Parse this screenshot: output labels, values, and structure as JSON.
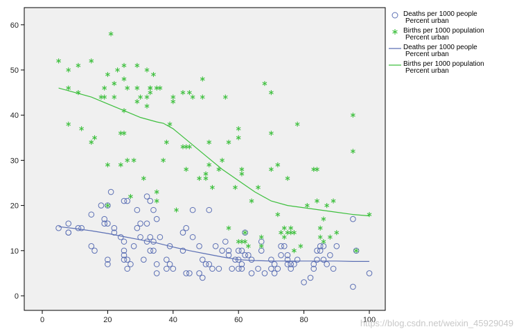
{
  "chart_data": {
    "type": "scatter",
    "xlim": [
      0,
      100
    ],
    "ylim": [
      0,
      60
    ],
    "x_ticks": [
      "0",
      "20",
      "40",
      "60",
      "80",
      "100"
    ],
    "y_ticks": [
      "0",
      "10",
      "20",
      "30",
      "40",
      "50",
      "60"
    ],
    "grid": false,
    "legend_position": "right",
    "colors": {
      "deaths": "#5b6fb4",
      "births": "#3cbf3c",
      "plot_bg": "#f0f0f0"
    },
    "legend": [
      {
        "line1": "Deaths per 1000 people",
        "line2": "Percent urban",
        "marker": "circle"
      },
      {
        "line1": "Births per 1000 population",
        "line2": "Percent urban",
        "marker": "star"
      },
      {
        "line1": "Deaths per 1000 people",
        "line2": "Percent urban",
        "marker": "line-deaths"
      },
      {
        "line1": "Births per 1000 population",
        "line2": "Percent urban",
        "marker": "line-births"
      }
    ],
    "series": [
      {
        "name": "Deaths per 1000 people",
        "marker": "circle",
        "points": [
          [
            5,
            15
          ],
          [
            8,
            14
          ],
          [
            8,
            16
          ],
          [
            8,
            14
          ],
          [
            11,
            15
          ],
          [
            12,
            15
          ],
          [
            15,
            11
          ],
          [
            15,
            18
          ],
          [
            16,
            10
          ],
          [
            18,
            20
          ],
          [
            19,
            16
          ],
          [
            19,
            17
          ],
          [
            20,
            8
          ],
          [
            20,
            7
          ],
          [
            20,
            20
          ],
          [
            20,
            16
          ],
          [
            21,
            23
          ],
          [
            22,
            15
          ],
          [
            22,
            14
          ],
          [
            24,
            13
          ],
          [
            25,
            10
          ],
          [
            25,
            8
          ],
          [
            25,
            12
          ],
          [
            25,
            9
          ],
          [
            25,
            21
          ],
          [
            26,
            21
          ],
          [
            26,
            6
          ],
          [
            26,
            8
          ],
          [
            27,
            7
          ],
          [
            28,
            11
          ],
          [
            29,
            15
          ],
          [
            29,
            19
          ],
          [
            30,
            13
          ],
          [
            30,
            16
          ],
          [
            31,
            8
          ],
          [
            32,
            22
          ],
          [
            32,
            16
          ],
          [
            32,
            12
          ],
          [
            33,
            10
          ],
          [
            33,
            21
          ],
          [
            33,
            13
          ],
          [
            34,
            19
          ],
          [
            34,
            10
          ],
          [
            34,
            12
          ],
          [
            35,
            17
          ],
          [
            35,
            5
          ],
          [
            35,
            7
          ],
          [
            36,
            13
          ],
          [
            38,
            8
          ],
          [
            38,
            6
          ],
          [
            39,
            11
          ],
          [
            39,
            7
          ],
          [
            40,
            6
          ],
          [
            43,
            14
          ],
          [
            43,
            10
          ],
          [
            44,
            15
          ],
          [
            44,
            5
          ],
          [
            45,
            5
          ],
          [
            46,
            13
          ],
          [
            46,
            19
          ],
          [
            48,
            5
          ],
          [
            48,
            11
          ],
          [
            49,
            4
          ],
          [
            49,
            8
          ],
          [
            50,
            7
          ],
          [
            51,
            19
          ],
          [
            51,
            7
          ],
          [
            52,
            6
          ],
          [
            53,
            11
          ],
          [
            54,
            6
          ],
          [
            55,
            10
          ],
          [
            56,
            12
          ],
          [
            57,
            9
          ],
          [
            57,
            10
          ],
          [
            58,
            6
          ],
          [
            59,
            8
          ],
          [
            60,
            10
          ],
          [
            60,
            8
          ],
          [
            60,
            6
          ],
          [
            61,
            10
          ],
          [
            61,
            7
          ],
          [
            61,
            6
          ],
          [
            62,
            14
          ],
          [
            62,
            9
          ],
          [
            63,
            9
          ],
          [
            64,
            8
          ],
          [
            64,
            5
          ],
          [
            66,
            6
          ],
          [
            67,
            10
          ],
          [
            67,
            12
          ],
          [
            68,
            5
          ],
          [
            70,
            8
          ],
          [
            70,
            6
          ],
          [
            71,
            7
          ],
          [
            71,
            5
          ],
          [
            72,
            6
          ],
          [
            73,
            11
          ],
          [
            73,
            9
          ],
          [
            74,
            11
          ],
          [
            75,
            9
          ],
          [
            75,
            7
          ],
          [
            75,
            8
          ],
          [
            76,
            7
          ],
          [
            76,
            6
          ],
          [
            77,
            7
          ],
          [
            78,
            8
          ],
          [
            80,
            3
          ],
          [
            82,
            4
          ],
          [
            83,
            6
          ],
          [
            83,
            7
          ],
          [
            84,
            10
          ],
          [
            84,
            8
          ],
          [
            85,
            11
          ],
          [
            85,
            10
          ],
          [
            86,
            11
          ],
          [
            86,
            8
          ],
          [
            87,
            7
          ],
          [
            88,
            9
          ],
          [
            89,
            6
          ],
          [
            90,
            11
          ],
          [
            95,
            17
          ],
          [
            95,
            2
          ],
          [
            96,
            10
          ],
          [
            100,
            5
          ]
        ]
      },
      {
        "name": "Births per 1000 population",
        "marker": "star",
        "points": [
          [
            5,
            52
          ],
          [
            8,
            50
          ],
          [
            8,
            46
          ],
          [
            8,
            38
          ],
          [
            11,
            51
          ],
          [
            11,
            45
          ],
          [
            12,
            37
          ],
          [
            15,
            52
          ],
          [
            15,
            34
          ],
          [
            16,
            35
          ],
          [
            18,
            44
          ],
          [
            19,
            46
          ],
          [
            19,
            44
          ],
          [
            20,
            49
          ],
          [
            20,
            29
          ],
          [
            20,
            20
          ],
          [
            21,
            58
          ],
          [
            22,
            44
          ],
          [
            22,
            47
          ],
          [
            23,
            50
          ],
          [
            24,
            36
          ],
          [
            24,
            29
          ],
          [
            25,
            36
          ],
          [
            25,
            51
          ],
          [
            25,
            48
          ],
          [
            25,
            41
          ],
          [
            26,
            46
          ],
          [
            26,
            30
          ],
          [
            27,
            22
          ],
          [
            28,
            30
          ],
          [
            29,
            46
          ],
          [
            29,
            51
          ],
          [
            29,
            43
          ],
          [
            30,
            44
          ],
          [
            31,
            26
          ],
          [
            32,
            50
          ],
          [
            32,
            44
          ],
          [
            32,
            42
          ],
          [
            33,
            46
          ],
          [
            33,
            46
          ],
          [
            33,
            45
          ],
          [
            34,
            49
          ],
          [
            35,
            46
          ],
          [
            35,
            23
          ],
          [
            35,
            21
          ],
          [
            36,
            46
          ],
          [
            37,
            30
          ],
          [
            38,
            34
          ],
          [
            39,
            38
          ],
          [
            40,
            44
          ],
          [
            40,
            43
          ],
          [
            41,
            19
          ],
          [
            43,
            45
          ],
          [
            43,
            33
          ],
          [
            44,
            33
          ],
          [
            44,
            28
          ],
          [
            45,
            45
          ],
          [
            45,
            33
          ],
          [
            46,
            44
          ],
          [
            48,
            26
          ],
          [
            49,
            48
          ],
          [
            49,
            44
          ],
          [
            50,
            27
          ],
          [
            50,
            26
          ],
          [
            51,
            34
          ],
          [
            51,
            29
          ],
          [
            52,
            24
          ],
          [
            54,
            28
          ],
          [
            55,
            30
          ],
          [
            56,
            44
          ],
          [
            57,
            15
          ],
          [
            57,
            34
          ],
          [
            59,
            24
          ],
          [
            60,
            37
          ],
          [
            60,
            35
          ],
          [
            60,
            12
          ],
          [
            61,
            28
          ],
          [
            61,
            27
          ],
          [
            61,
            12
          ],
          [
            62,
            14
          ],
          [
            62,
            12
          ],
          [
            63,
            11
          ],
          [
            64,
            21
          ],
          [
            66,
            24
          ],
          [
            67,
            13
          ],
          [
            67,
            11
          ],
          [
            68,
            47
          ],
          [
            70,
            45
          ],
          [
            70,
            36
          ],
          [
            70,
            28
          ],
          [
            72,
            29
          ],
          [
            72,
            18
          ],
          [
            73,
            14
          ],
          [
            74,
            15
          ],
          [
            74,
            13
          ],
          [
            75,
            14
          ],
          [
            75,
            26
          ],
          [
            76,
            15
          ],
          [
            76,
            14
          ],
          [
            77,
            10
          ],
          [
            77,
            14
          ],
          [
            78,
            38
          ],
          [
            79,
            11
          ],
          [
            81,
            20
          ],
          [
            83,
            28
          ],
          [
            84,
            28
          ],
          [
            84,
            21
          ],
          [
            85,
            13
          ],
          [
            85,
            15
          ],
          [
            86,
            17
          ],
          [
            86,
            12
          ],
          [
            87,
            20
          ],
          [
            88,
            13
          ],
          [
            89,
            21
          ],
          [
            90,
            14
          ],
          [
            95,
            40
          ],
          [
            95,
            32
          ],
          [
            96,
            10
          ],
          [
            100,
            18
          ]
        ]
      },
      {
        "name": "Deaths per 1000 people",
        "marker": "line",
        "points": [
          [
            5,
            15.3
          ],
          [
            10,
            14.9
          ],
          [
            15,
            14.4
          ],
          [
            20,
            13.8
          ],
          [
            25,
            13.1
          ],
          [
            30,
            12.4
          ],
          [
            35,
            11.7
          ],
          [
            40,
            10.8
          ],
          [
            45,
            10.0
          ],
          [
            50,
            9.3
          ],
          [
            55,
            8.6
          ],
          [
            60,
            8.0
          ],
          [
            65,
            7.8
          ],
          [
            70,
            7.7
          ],
          [
            75,
            7.7
          ],
          [
            80,
            7.7
          ],
          [
            85,
            7.7
          ],
          [
            90,
            7.7
          ],
          [
            95,
            7.6
          ],
          [
            100,
            7.6
          ]
        ]
      },
      {
        "name": "Births per 1000 population",
        "marker": "line",
        "points": [
          [
            5,
            46
          ],
          [
            10,
            45
          ],
          [
            15,
            44
          ],
          [
            20,
            42.5
          ],
          [
            25,
            41
          ],
          [
            30,
            39.5
          ],
          [
            35,
            38.5
          ],
          [
            37,
            38.2
          ],
          [
            40,
            37
          ],
          [
            45,
            34
          ],
          [
            50,
            31
          ],
          [
            55,
            28
          ],
          [
            60,
            25.5
          ],
          [
            65,
            23
          ],
          [
            70,
            21
          ],
          [
            75,
            20
          ],
          [
            80,
            19.5
          ],
          [
            85,
            19
          ],
          [
            90,
            18.5
          ],
          [
            95,
            18
          ],
          [
            100,
            17.7
          ]
        ]
      }
    ]
  },
  "watermark": "https://blog.csdn.net/weixin_45929049"
}
